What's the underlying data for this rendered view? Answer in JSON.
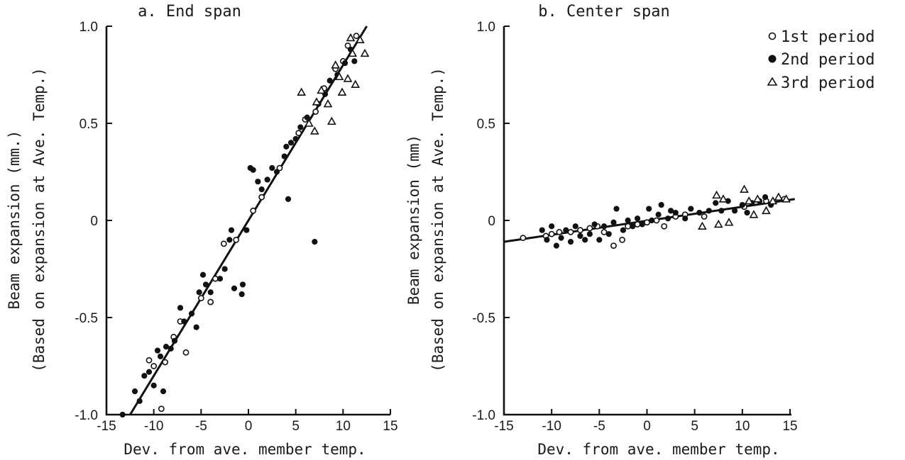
{
  "chart_data": [
    {
      "type": "scatter",
      "title": "a. End span",
      "xlabel": "Dev. from ave. member temp.",
      "ylabel_line1": "Beam expansion (mm.)",
      "ylabel_line2": "(Based on expansion at Ave. Temp.)",
      "xlim": [
        -15,
        15
      ],
      "ylim": [
        -1.0,
        1.0
      ],
      "xticks": [
        -15,
        -10,
        -5,
        0,
        5,
        10,
        15
      ],
      "xtick_labels": [
        "-15",
        "-10",
        "-5",
        "0",
        "5",
        "10",
        "15"
      ],
      "yticks": [
        1.0,
        0.5,
        0,
        -0.5,
        -1.0
      ],
      "ytick_labels": [
        "1.0",
        "0.5",
        "0",
        "-0.5",
        "-1.0"
      ],
      "grid": false,
      "series": [
        {
          "name": "1st period",
          "marker": "open-circle",
          "points": [
            [
              -10.5,
              -0.72
            ],
            [
              -10.0,
              -0.75
            ],
            [
              -9.2,
              -0.97
            ],
            [
              -8.8,
              -0.73
            ],
            [
              -7.9,
              -0.6
            ],
            [
              -7.2,
              -0.52
            ],
            [
              -6.6,
              -0.68
            ],
            [
              -5.0,
              -0.4
            ],
            [
              -4.0,
              -0.42
            ],
            [
              -3.5,
              -0.3
            ],
            [
              -2.6,
              -0.12
            ],
            [
              -1.3,
              -0.1
            ],
            [
              0.5,
              0.05
            ],
            [
              1.4,
              0.12
            ],
            [
              3.3,
              0.27
            ],
            [
              5.3,
              0.45
            ],
            [
              6.0,
              0.52
            ],
            [
              7.1,
              0.56
            ],
            [
              8.0,
              0.68
            ],
            [
              9.2,
              0.78
            ],
            [
              10.0,
              0.82
            ],
            [
              10.5,
              0.9
            ],
            [
              11.4,
              0.95
            ]
          ]
        },
        {
          "name": "2nd period",
          "marker": "filled-circle",
          "points": [
            [
              -13.3,
              -1.0
            ],
            [
              -12.0,
              -0.88
            ],
            [
              -11.5,
              -0.93
            ],
            [
              -11.0,
              -0.8
            ],
            [
              -10.5,
              -0.78
            ],
            [
              -10.0,
              -0.85
            ],
            [
              -9.6,
              -0.67
            ],
            [
              -9.3,
              -0.7
            ],
            [
              -9.0,
              -0.88
            ],
            [
              -8.7,
              -0.65
            ],
            [
              -8.2,
              -0.66
            ],
            [
              -7.8,
              -0.62
            ],
            [
              -7.2,
              -0.45
            ],
            [
              -6.8,
              -0.52
            ],
            [
              -6.0,
              -0.48
            ],
            [
              -5.5,
              -0.55
            ],
            [
              -5.2,
              -0.37
            ],
            [
              -4.8,
              -0.28
            ],
            [
              -4.5,
              -0.33
            ],
            [
              -4.0,
              -0.37
            ],
            [
              -3.0,
              -0.3
            ],
            [
              -2.5,
              -0.25
            ],
            [
              -2.0,
              -0.1
            ],
            [
              -1.8,
              -0.05
            ],
            [
              -1.5,
              -0.35
            ],
            [
              -0.7,
              -0.38
            ],
            [
              -0.6,
              -0.33
            ],
            [
              -0.2,
              -0.05
            ],
            [
              0.2,
              0.27
            ],
            [
              0.5,
              0.26
            ],
            [
              1.0,
              0.2
            ],
            [
              1.4,
              0.16
            ],
            [
              2.0,
              0.21
            ],
            [
              2.5,
              0.27
            ],
            [
              3.0,
              0.25
            ],
            [
              3.8,
              0.33
            ],
            [
              4.2,
              0.11
            ],
            [
              4.0,
              0.38
            ],
            [
              4.5,
              0.4
            ],
            [
              5.0,
              0.42
            ],
            [
              5.5,
              0.48
            ],
            [
              6.2,
              0.53
            ],
            [
              7.0,
              -0.11
            ],
            [
              7.4,
              0.6
            ],
            [
              8.1,
              0.65
            ],
            [
              8.6,
              0.72
            ],
            [
              9.4,
              0.75
            ],
            [
              10.2,
              0.81
            ],
            [
              10.8,
              0.88
            ],
            [
              11.2,
              0.82
            ]
          ]
        },
        {
          "name": "3rd period",
          "marker": "open-triangle",
          "points": [
            [
              5.6,
              0.66
            ],
            [
              6.4,
              0.5
            ],
            [
              7.0,
              0.46
            ],
            [
              7.2,
              0.61
            ],
            [
              7.7,
              0.67
            ],
            [
              8.4,
              0.6
            ],
            [
              8.8,
              0.51
            ],
            [
              9.2,
              0.8
            ],
            [
              9.6,
              0.74
            ],
            [
              9.9,
              0.66
            ],
            [
              10.5,
              0.73
            ],
            [
              10.8,
              0.94
            ],
            [
              11.0,
              0.86
            ],
            [
              11.3,
              0.7
            ],
            [
              11.8,
              0.93
            ],
            [
              12.3,
              0.86
            ]
          ]
        }
      ],
      "fit_line": {
        "x": [
          -12.5,
          12.5
        ],
        "y": [
          -1.0,
          1.0
        ]
      }
    },
    {
      "type": "scatter",
      "title": "b. Center span",
      "xlabel": "Dev. from ave. member temp.",
      "ylabel_line1": "Beam expansion (mm)",
      "ylabel_line2": "(Based on expansion at Ave. Temp.)",
      "xlim": [
        -15,
        15
      ],
      "ylim": [
        -1.0,
        1.0
      ],
      "xticks": [
        -15,
        -10,
        -5,
        0,
        5,
        10,
        15
      ],
      "xtick_labels": [
        "-15",
        "-10",
        "-5",
        "0",
        "5",
        "10",
        "15"
      ],
      "yticks": [
        1.0,
        0.5,
        0,
        -0.5,
        -1.0
      ],
      "ytick_labels": [
        "1.0",
        "0.5",
        "0",
        "-0.5",
        "-1.0"
      ],
      "grid": false,
      "legend": {
        "placement": "top-right"
      },
      "series": [
        {
          "name": "1st period",
          "marker": "open-circle",
          "points": [
            [
              -13.0,
              -0.09
            ],
            [
              -10.6,
              -0.08
            ],
            [
              -10.0,
              -0.07
            ],
            [
              -9.2,
              -0.06
            ],
            [
              -8.0,
              -0.06
            ],
            [
              -7.0,
              -0.05
            ],
            [
              -6.0,
              -0.04
            ],
            [
              -5.2,
              -0.03
            ],
            [
              -4.5,
              -0.06
            ],
            [
              -3.5,
              -0.13
            ],
            [
              -2.6,
              -0.1
            ],
            [
              -2.0,
              -0.03
            ],
            [
              -1.0,
              -0.02
            ],
            [
              0.0,
              -0.01
            ],
            [
              1.0,
              0.0
            ],
            [
              1.8,
              -0.03
            ],
            [
              3.0,
              0.02
            ],
            [
              4.0,
              0.03
            ],
            [
              6.0,
              0.02
            ],
            [
              10.2,
              0.07
            ],
            [
              12.5,
              0.1
            ],
            [
              14.4,
              0.11
            ]
          ]
        },
        {
          "name": "2nd period",
          "marker": "filled-circle",
          "points": [
            [
              -11.0,
              -0.05
            ],
            [
              -10.5,
              -0.1
            ],
            [
              -10.0,
              -0.03
            ],
            [
              -9.5,
              -0.13
            ],
            [
              -9.0,
              -0.09
            ],
            [
              -8.5,
              -0.05
            ],
            [
              -8.0,
              -0.11
            ],
            [
              -7.5,
              -0.03
            ],
            [
              -7.0,
              -0.08
            ],
            [
              -6.5,
              -0.1
            ],
            [
              -6.0,
              -0.07
            ],
            [
              -5.5,
              -0.02
            ],
            [
              -5.0,
              -0.1
            ],
            [
              -4.5,
              -0.03
            ],
            [
              -4.0,
              -0.07
            ],
            [
              -3.2,
              0.06
            ],
            [
              -3.5,
              -0.01
            ],
            [
              -2.5,
              -0.05
            ],
            [
              -2.0,
              0.0
            ],
            [
              -1.5,
              -0.03
            ],
            [
              -1.0,
              0.01
            ],
            [
              -0.5,
              -0.02
            ],
            [
              0.2,
              0.06
            ],
            [
              0.5,
              0.0
            ],
            [
              1.2,
              0.03
            ],
            [
              1.5,
              0.08
            ],
            [
              2.2,
              0.01
            ],
            [
              2.5,
              0.05
            ],
            [
              3.0,
              0.04
            ],
            [
              4.0,
              0.01
            ],
            [
              4.6,
              0.06
            ],
            [
              5.5,
              0.04
            ],
            [
              6.5,
              0.05
            ],
            [
              7.2,
              0.09
            ],
            [
              7.8,
              0.05
            ],
            [
              8.5,
              0.1
            ],
            [
              9.2,
              0.05
            ],
            [
              10.0,
              0.08
            ],
            [
              10.5,
              0.04
            ],
            [
              11.0,
              0.09
            ],
            [
              11.8,
              0.1
            ],
            [
              12.4,
              0.12
            ],
            [
              13.0,
              0.08
            ]
          ]
        },
        {
          "name": "3rd period",
          "marker": "open-triangle",
          "points": [
            [
              5.8,
              -0.03
            ],
            [
              7.3,
              0.13
            ],
            [
              7.5,
              -0.02
            ],
            [
              8.0,
              0.11
            ],
            [
              8.6,
              -0.01
            ],
            [
              10.2,
              0.16
            ],
            [
              10.7,
              0.1
            ],
            [
              11.2,
              0.03
            ],
            [
              11.6,
              0.11
            ],
            [
              12.5,
              0.05
            ],
            [
              13.2,
              0.1
            ],
            [
              13.8,
              0.12
            ],
            [
              14.6,
              0.11
            ]
          ]
        }
      ],
      "fit_line": {
        "x": [
          -15.0,
          15.5
        ],
        "y": [
          -0.11,
          0.11
        ]
      }
    }
  ]
}
